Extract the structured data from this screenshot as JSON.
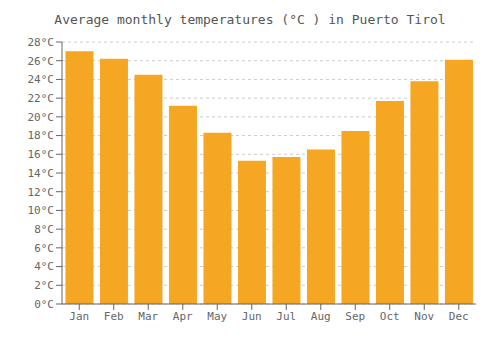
{
  "chart_data": {
    "type": "bar",
    "title": "Average monthly temperatures (°C ) in Puerto Tirol",
    "categories": [
      "Jan",
      "Feb",
      "Mar",
      "Apr",
      "May",
      "Jun",
      "Jul",
      "Aug",
      "Sep",
      "Oct",
      "Nov",
      "Dec"
    ],
    "values": [
      27.0,
      26.2,
      24.5,
      21.2,
      18.3,
      15.3,
      15.7,
      16.5,
      18.5,
      21.7,
      23.8,
      26.1
    ],
    "color": "#F5A623",
    "ylim": [
      0,
      28
    ],
    "yticks": [
      {
        "value": 0,
        "label": "0°C"
      },
      {
        "value": 2,
        "label": "2°C"
      },
      {
        "value": 4,
        "label": "4°C"
      },
      {
        "value": 6,
        "label": "6°C"
      },
      {
        "value": 8,
        "label": "8°C"
      },
      {
        "value": 10,
        "label": "10°C"
      },
      {
        "value": 12,
        "label": "12°C"
      },
      {
        "value": 14,
        "label": "14°C"
      },
      {
        "value": 16,
        "label": "16°C"
      },
      {
        "value": 18,
        "label": "18°C"
      },
      {
        "value": 20,
        "label": "20°C"
      },
      {
        "value": 22,
        "label": "22°C"
      },
      {
        "value": 24,
        "label": "24°C"
      },
      {
        "value": 26,
        "label": "26°C"
      },
      {
        "value": 28,
        "label": "28°C"
      }
    ],
    "grid": true
  }
}
